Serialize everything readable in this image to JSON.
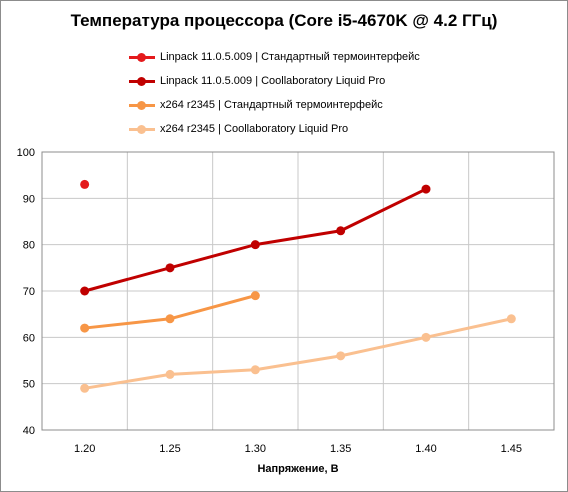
{
  "chart_data": {
    "type": "line",
    "title": "Температура процессора (Core i5-4670K @ 4.2 ГГц)",
    "xlabel": "Напряжение, В",
    "ylabel": "",
    "categories": [
      "1.20",
      "1.25",
      "1.30",
      "1.35",
      "1.40",
      "1.45"
    ],
    "ylim": [
      40,
      100
    ],
    "yticks": [
      "40",
      "50",
      "60",
      "70",
      "80",
      "90",
      "100"
    ],
    "grid": true,
    "legend_position": "top",
    "series": [
      {
        "name": "Linpack 11.0.5.009 | Стандартный термоинтерфейс",
        "color": "#e41a1c",
        "values": [
          93,
          null,
          null,
          null,
          null,
          null
        ]
      },
      {
        "name": "Linpack 11.0.5.009 | Coollaboratory Liquid Pro",
        "color": "#c00000",
        "values": [
          70,
          75,
          80,
          83,
          92,
          null
        ]
      },
      {
        "name": "x264 r2345 | Стандартный термоинтерфейс",
        "color": "#f79646",
        "values": [
          62,
          64,
          69,
          null,
          null,
          null
        ]
      },
      {
        "name": "x264 r2345 | Coollaboratory Liquid Pro",
        "color": "#fac090",
        "values": [
          49,
          52,
          53,
          56,
          60,
          64
        ]
      }
    ]
  }
}
